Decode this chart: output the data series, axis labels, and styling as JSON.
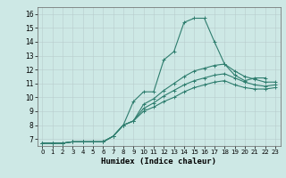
{
  "title": "",
  "xlabel": "Humidex (Indice chaleur)",
  "ylabel": "",
  "xlim": [
    -0.5,
    23.5
  ],
  "ylim": [
    6.5,
    16.5
  ],
  "xticks": [
    0,
    1,
    2,
    3,
    4,
    5,
    6,
    7,
    8,
    9,
    10,
    11,
    12,
    13,
    14,
    15,
    16,
    17,
    18,
    19,
    20,
    21,
    22,
    23
  ],
  "yticks": [
    7,
    8,
    9,
    10,
    11,
    12,
    13,
    14,
    15,
    16
  ],
  "bg_color": "#cde8e5",
  "grid_color": "#b0c8c8",
  "line_color": "#2e7d6e",
  "lines": [
    {
      "x": [
        0,
        1,
        2,
        3,
        4,
        5,
        6,
        7,
        8,
        9,
        10,
        11,
        12,
        13,
        14,
        15,
        16,
        17,
        18,
        19,
        20,
        21,
        22
      ],
      "y": [
        6.7,
        6.7,
        6.7,
        6.8,
        6.8,
        6.8,
        6.8,
        7.2,
        8.0,
        9.7,
        10.4,
        10.4,
        12.7,
        13.3,
        15.4,
        15.7,
        15.7,
        14.0,
        12.4,
        11.6,
        11.2,
        11.4,
        11.4
      ]
    },
    {
      "x": [
        0,
        1,
        2,
        3,
        4,
        5,
        6,
        7,
        8,
        9,
        10,
        11,
        12,
        13,
        14,
        15,
        16,
        17,
        18,
        19,
        20,
        21,
        22,
        23
      ],
      "y": [
        6.7,
        6.7,
        6.7,
        6.8,
        6.8,
        6.8,
        6.8,
        7.2,
        8.0,
        8.3,
        9.5,
        9.9,
        10.5,
        11.0,
        11.5,
        11.9,
        12.1,
        12.3,
        12.4,
        11.9,
        11.5,
        11.3,
        11.1,
        11.1
      ]
    },
    {
      "x": [
        0,
        1,
        2,
        3,
        4,
        5,
        6,
        7,
        8,
        9,
        10,
        11,
        12,
        13,
        14,
        15,
        16,
        17,
        18,
        19,
        20,
        21,
        22,
        23
      ],
      "y": [
        6.7,
        6.7,
        6.7,
        6.8,
        6.8,
        6.8,
        6.8,
        7.2,
        8.0,
        8.3,
        9.2,
        9.6,
        10.1,
        10.5,
        10.9,
        11.2,
        11.4,
        11.6,
        11.7,
        11.4,
        11.1,
        10.9,
        10.8,
        10.9
      ]
    },
    {
      "x": [
        0,
        1,
        2,
        3,
        4,
        5,
        6,
        7,
        8,
        9,
        10,
        11,
        12,
        13,
        14,
        15,
        16,
        17,
        18,
        19,
        20,
        21,
        22,
        23
      ],
      "y": [
        6.7,
        6.7,
        6.7,
        6.8,
        6.8,
        6.8,
        6.8,
        7.2,
        8.0,
        8.3,
        9.0,
        9.3,
        9.7,
        10.0,
        10.4,
        10.7,
        10.9,
        11.1,
        11.2,
        10.9,
        10.7,
        10.6,
        10.6,
        10.7
      ]
    }
  ]
}
